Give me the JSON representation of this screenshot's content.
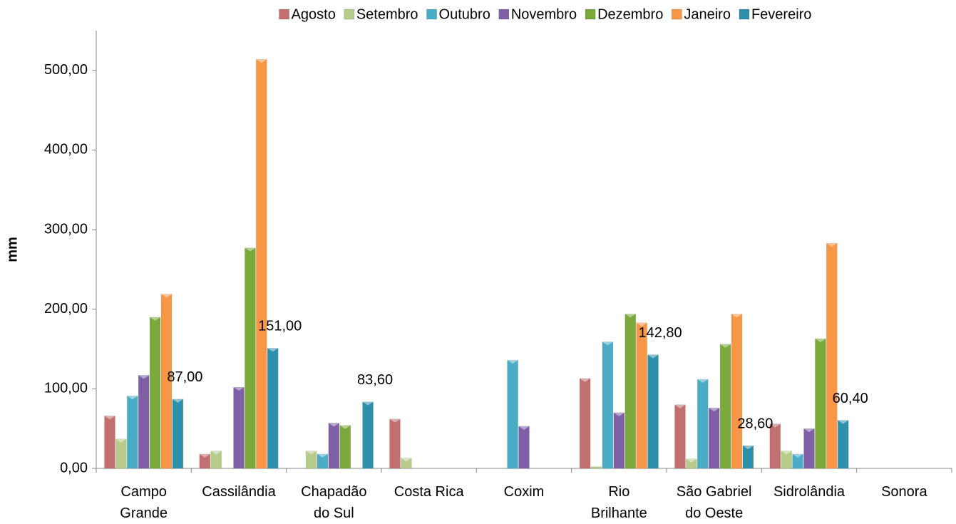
{
  "chart_data": {
    "type": "bar",
    "y_label": "mm",
    "categories": [
      "Campo\nGrande",
      "Cassilândia",
      "Chapadão\ndo Sul",
      "Costa Rica",
      "Coxim",
      "Rio\nBrilhante",
      "São Gabriel\ndo Oeste",
      "Sidrolândia",
      "Sonora"
    ],
    "series": [
      {
        "name": "Agosto",
        "color": "#c0706e",
        "values": [
          66,
          18,
          null,
          62,
          null,
          113,
          80,
          56,
          null
        ]
      },
      {
        "name": "Setembro",
        "color": "#b7cc8a",
        "values": [
          37,
          22,
          22,
          13,
          null,
          2,
          12,
          22,
          null
        ]
      },
      {
        "name": "Outubro",
        "color": "#4bacc6",
        "values": [
          91,
          null,
          18,
          null,
          136,
          159,
          112,
          18,
          null
        ]
      },
      {
        "name": "Novembro",
        "color": "#7f5fa6",
        "values": [
          117,
          102,
          57,
          null,
          53,
          70,
          76,
          50,
          null
        ]
      },
      {
        "name": "Dezembro",
        "color": "#7aa83a",
        "values": [
          190,
          277,
          54,
          null,
          null,
          194,
          156,
          163,
          null
        ]
      },
      {
        "name": "Janeiro",
        "color": "#f79646",
        "values": [
          219,
          514,
          null,
          null,
          null,
          183,
          194,
          283,
          null
        ]
      },
      {
        "name": "Fevereiro",
        "color": "#2e8faa",
        "values": [
          87,
          151,
          83.6,
          null,
          null,
          142.8,
          28.6,
          60.4,
          null
        ],
        "value_labels": [
          "87,00",
          "151,00",
          "83,60",
          null,
          null,
          "142,80",
          "28,60",
          "60,40",
          null
        ]
      }
    ],
    "ylim": [
      0,
      550
    ],
    "yticks": [
      {
        "value": 0,
        "label": "0,00"
      },
      {
        "value": 100,
        "label": "100,00"
      },
      {
        "value": 200,
        "label": "200,00"
      },
      {
        "value": 300,
        "label": "300,00"
      },
      {
        "value": 400,
        "label": "400,00"
      },
      {
        "value": 500,
        "label": "500,00"
      }
    ],
    "legend": "top",
    "grid": false
  }
}
